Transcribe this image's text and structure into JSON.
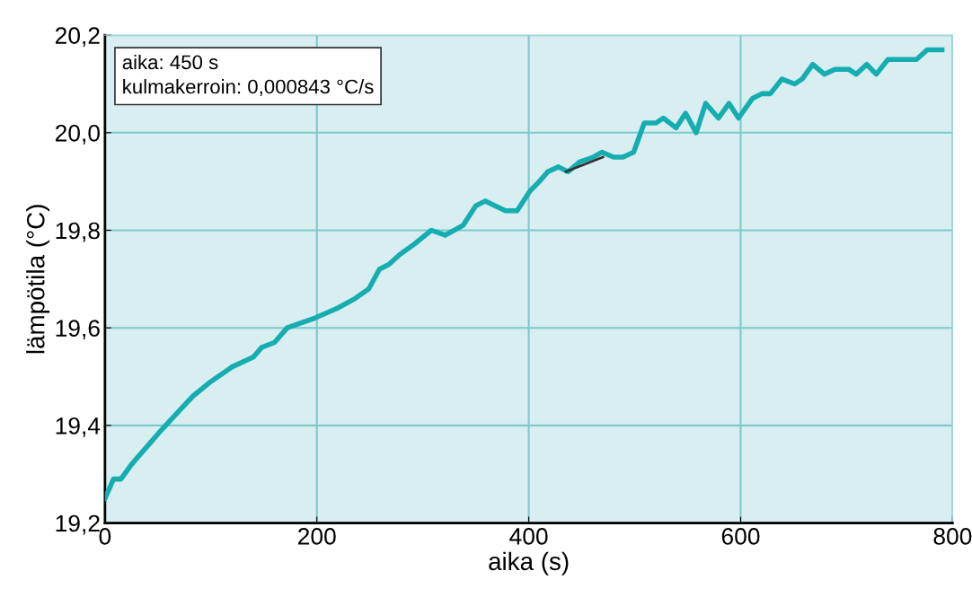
{
  "chart_data": {
    "type": "line",
    "xlabel": "aika (s)",
    "ylabel": "lämpötila (°C)",
    "annotations": [
      "aika: 450 s\nkulmakerroin: 0,000843 °C/s"
    ],
    "xlim": [
      0,
      800
    ],
    "xticks": [
      0,
      200,
      400,
      600,
      800
    ],
    "ylim": [
      19.2,
      20.2
    ],
    "yticks": [
      {
        "value": 19.2,
        "label": "19,2"
      },
      {
        "value": 19.4,
        "label": "19,4"
      },
      {
        "value": 19.6,
        "label": "19,6"
      },
      {
        "value": 19.8,
        "label": "19,8"
      },
      {
        "value": 20.0,
        "label": "20,0"
      },
      {
        "value": 20.2,
        "label": "20,2"
      }
    ],
    "grid": true,
    "marker": "none",
    "line_style": "solid",
    "series": [
      {
        "color": "#16adb0",
        "x": [
          0,
          8,
          15,
          25,
          41,
          53,
          70,
          83,
          100,
          120,
          140,
          148,
          160,
          172,
          198,
          219,
          236,
          249,
          259,
          268,
          278,
          291,
          308,
          321,
          338,
          350,
          359,
          378,
          389,
          401,
          410,
          418,
          428,
          437,
          448,
          461,
          469,
          480,
          489,
          499,
          509,
          520,
          527,
          539,
          548,
          558,
          567,
          579,
          589,
          598,
          611,
          620,
          628,
          639,
          651,
          658,
          668,
          679,
          689,
          702,
          709,
          719,
          728,
          739,
          753,
          766,
          776,
          790
        ],
        "values": [
          19.25,
          19.29,
          19.29,
          19.32,
          19.36,
          19.39,
          19.43,
          19.46,
          19.49,
          19.52,
          19.54,
          19.56,
          19.57,
          19.6,
          19.62,
          19.64,
          19.66,
          19.68,
          19.72,
          19.73,
          19.75,
          19.77,
          19.8,
          19.79,
          19.81,
          19.85,
          19.86,
          19.84,
          19.84,
          19.88,
          19.9,
          19.92,
          19.93,
          19.92,
          19.94,
          19.95,
          19.96,
          19.95,
          19.95,
          19.96,
          20.02,
          20.02,
          20.03,
          20.01,
          20.04,
          20.0,
          20.06,
          20.03,
          20.06,
          20.03,
          20.07,
          20.08,
          20.08,
          20.11,
          20.1,
          20.11,
          20.14,
          20.12,
          20.13,
          20.13,
          20.12,
          20.14,
          20.12,
          20.15,
          20.15,
          20.15,
          20.17,
          20.17
        ]
      },
      {
        "color": "#333333",
        "x": [
          435,
          470
        ],
        "values": [
          19.92,
          19.95
        ]
      }
    ]
  }
}
